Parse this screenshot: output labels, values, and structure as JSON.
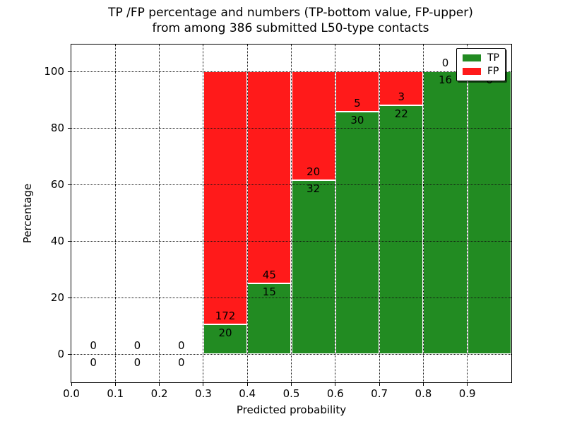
{
  "title": {
    "line1": "TP /FP percentage and numbers (TP-bottom value, FP-upper)",
    "line2": "from among 386 submitted L50-type contacts"
  },
  "axes": {
    "xlabel": "Predicted probability",
    "ylabel": "Percentage"
  },
  "legend": {
    "items": [
      {
        "label": "TP",
        "color": "#228B22"
      },
      {
        "label": "FP",
        "color": "#FF1A1A"
      }
    ],
    "position": "upper right"
  },
  "chart_data": {
    "type": "bar",
    "stacked": true,
    "title": "TP /FP percentage and numbers (TP-bottom value, FP-upper) from among 386 submitted L50-type contacts",
    "xlabel": "Predicted probability",
    "ylabel": "Percentage",
    "total_submitted": 386,
    "x_bin_width": 0.1,
    "x_bin_starts": [
      0.0,
      0.1,
      0.2,
      0.3,
      0.4,
      0.5,
      0.6,
      0.7,
      0.8,
      0.9
    ],
    "series": [
      {
        "name": "TP",
        "color": "#228B22",
        "counts": [
          0,
          0,
          0,
          20,
          15,
          32,
          30,
          22,
          16,
          6
        ]
      },
      {
        "name": "FP",
        "color": "#FF1A1A",
        "counts": [
          0,
          0,
          0,
          172,
          45,
          20,
          5,
          3,
          0,
          0
        ]
      }
    ],
    "bar_value_note": "bars show TP percentage of bin total stacked with FP percentage to 100; numeric labels show raw counts, TP below boundary, FP above",
    "xticks": [
      "0.0",
      "0.1",
      "0.2",
      "0.3",
      "0.4",
      "0.5",
      "0.6",
      "0.7",
      "0.8",
      "0.9"
    ],
    "yticks": [
      "0",
      "20",
      "40",
      "60",
      "80",
      "100"
    ],
    "xlim": [
      0.0,
      1.0
    ],
    "ylim": [
      -10,
      109.5
    ],
    "grid": "dotted black",
    "legend_position": "upper right",
    "bar_edge_color": "#ffffff"
  }
}
